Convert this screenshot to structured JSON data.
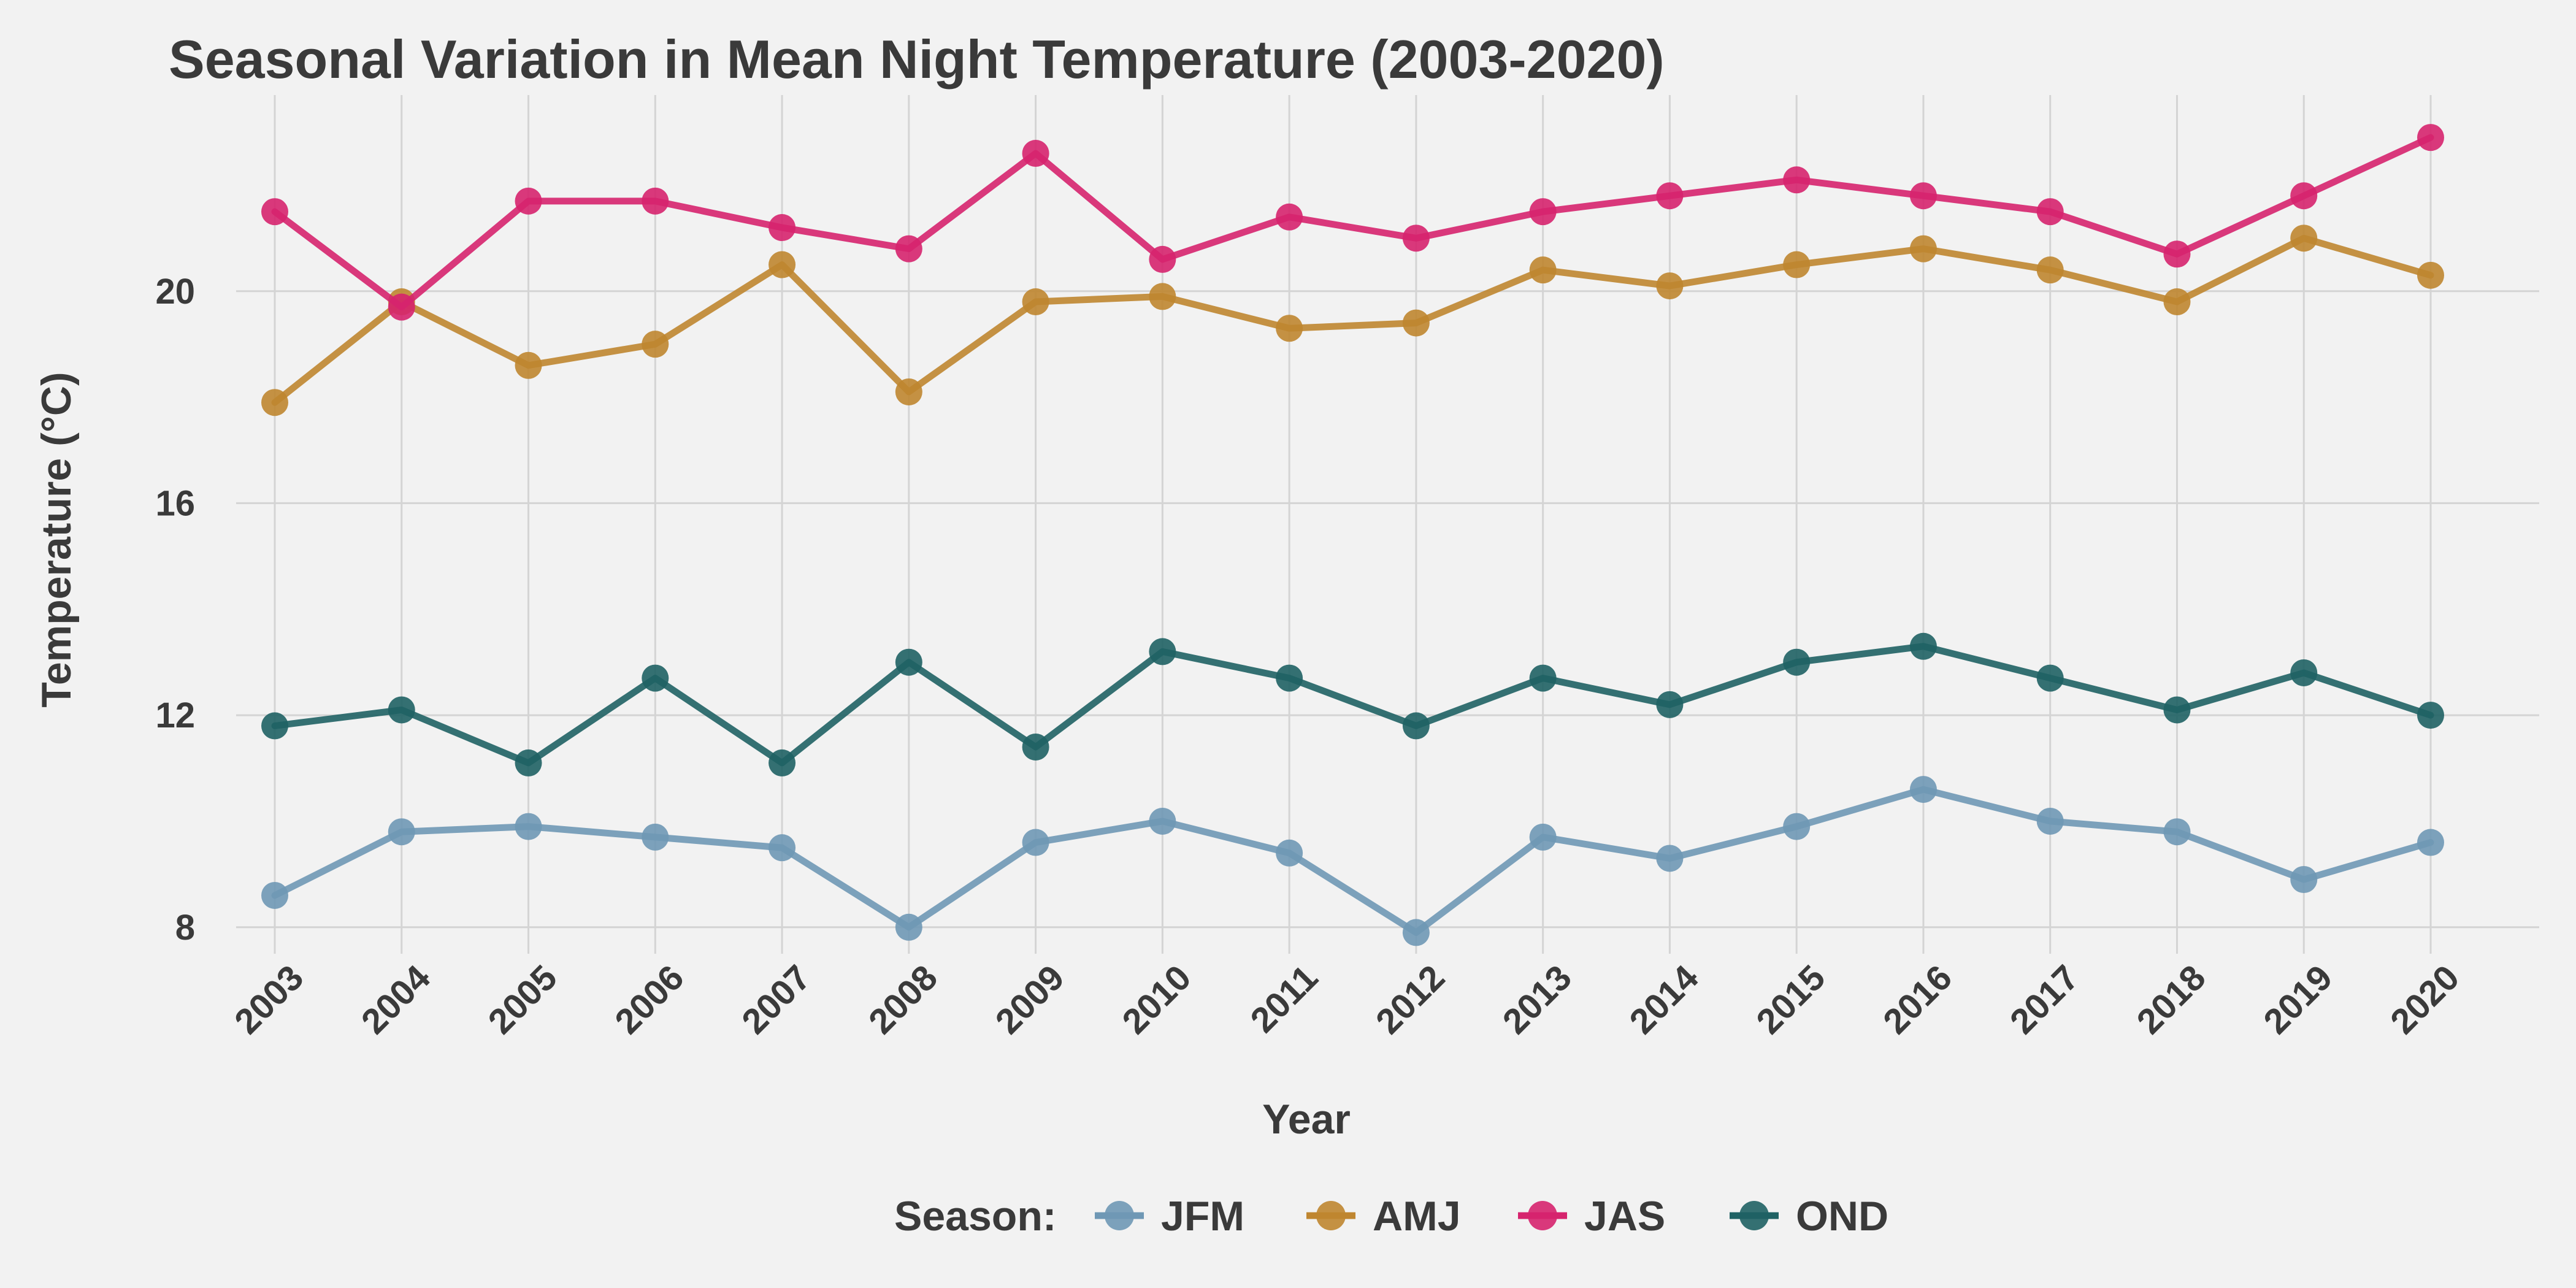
{
  "chart_data": {
    "type": "line",
    "title": "Seasonal Variation in Mean Night Temperature (2003-2020)",
    "xlabel": "Year",
    "ylabel": "Temperature (°C)",
    "x": [
      2003,
      2004,
      2005,
      2006,
      2007,
      2008,
      2009,
      2010,
      2011,
      2012,
      2013,
      2014,
      2015,
      2016,
      2017,
      2018,
      2019,
      2020
    ],
    "x_tick_labels": [
      "2003",
      "2004",
      "2005",
      "2006",
      "2007",
      "2008",
      "2009",
      "2010",
      "2011",
      "2012",
      "2013",
      "2014",
      "2015",
      "2016",
      "2017",
      "2018",
      "2019",
      "2020"
    ],
    "y_ticks": [
      8,
      12,
      16,
      20
    ],
    "ylim": [
      7.5,
      23.7
    ],
    "grid": true,
    "legend": {
      "title": "Season:",
      "placement": "bottom"
    },
    "series": [
      {
        "name": "JFM",
        "color": "#6f98b5",
        "values": [
          8.6,
          9.8,
          9.9,
          9.7,
          9.5,
          8.0,
          9.6,
          10.0,
          9.4,
          7.9,
          9.7,
          9.3,
          9.9,
          10.6,
          10.0,
          9.8,
          8.9,
          9.6
        ]
      },
      {
        "name": "AMJ",
        "color": "#bf8630",
        "values": [
          17.9,
          19.8,
          18.6,
          19.0,
          20.5,
          18.1,
          19.8,
          19.9,
          19.3,
          19.4,
          20.4,
          20.1,
          20.5,
          20.8,
          20.4,
          19.8,
          21.0,
          20.3
        ]
      },
      {
        "name": "JAS",
        "color": "#d6246e",
        "values": [
          21.5,
          19.7,
          21.7,
          21.7,
          21.2,
          20.8,
          22.6,
          20.6,
          21.4,
          21.0,
          21.5,
          21.8,
          22.1,
          21.8,
          21.5,
          20.7,
          21.8,
          22.9
        ]
      },
      {
        "name": "OND",
        "color": "#1f6264",
        "values": [
          11.8,
          12.1,
          11.1,
          12.7,
          11.1,
          13.0,
          11.4,
          13.2,
          12.7,
          11.8,
          12.7,
          12.2,
          13.0,
          13.3,
          12.7,
          12.1,
          12.8,
          12.0
        ]
      }
    ]
  }
}
